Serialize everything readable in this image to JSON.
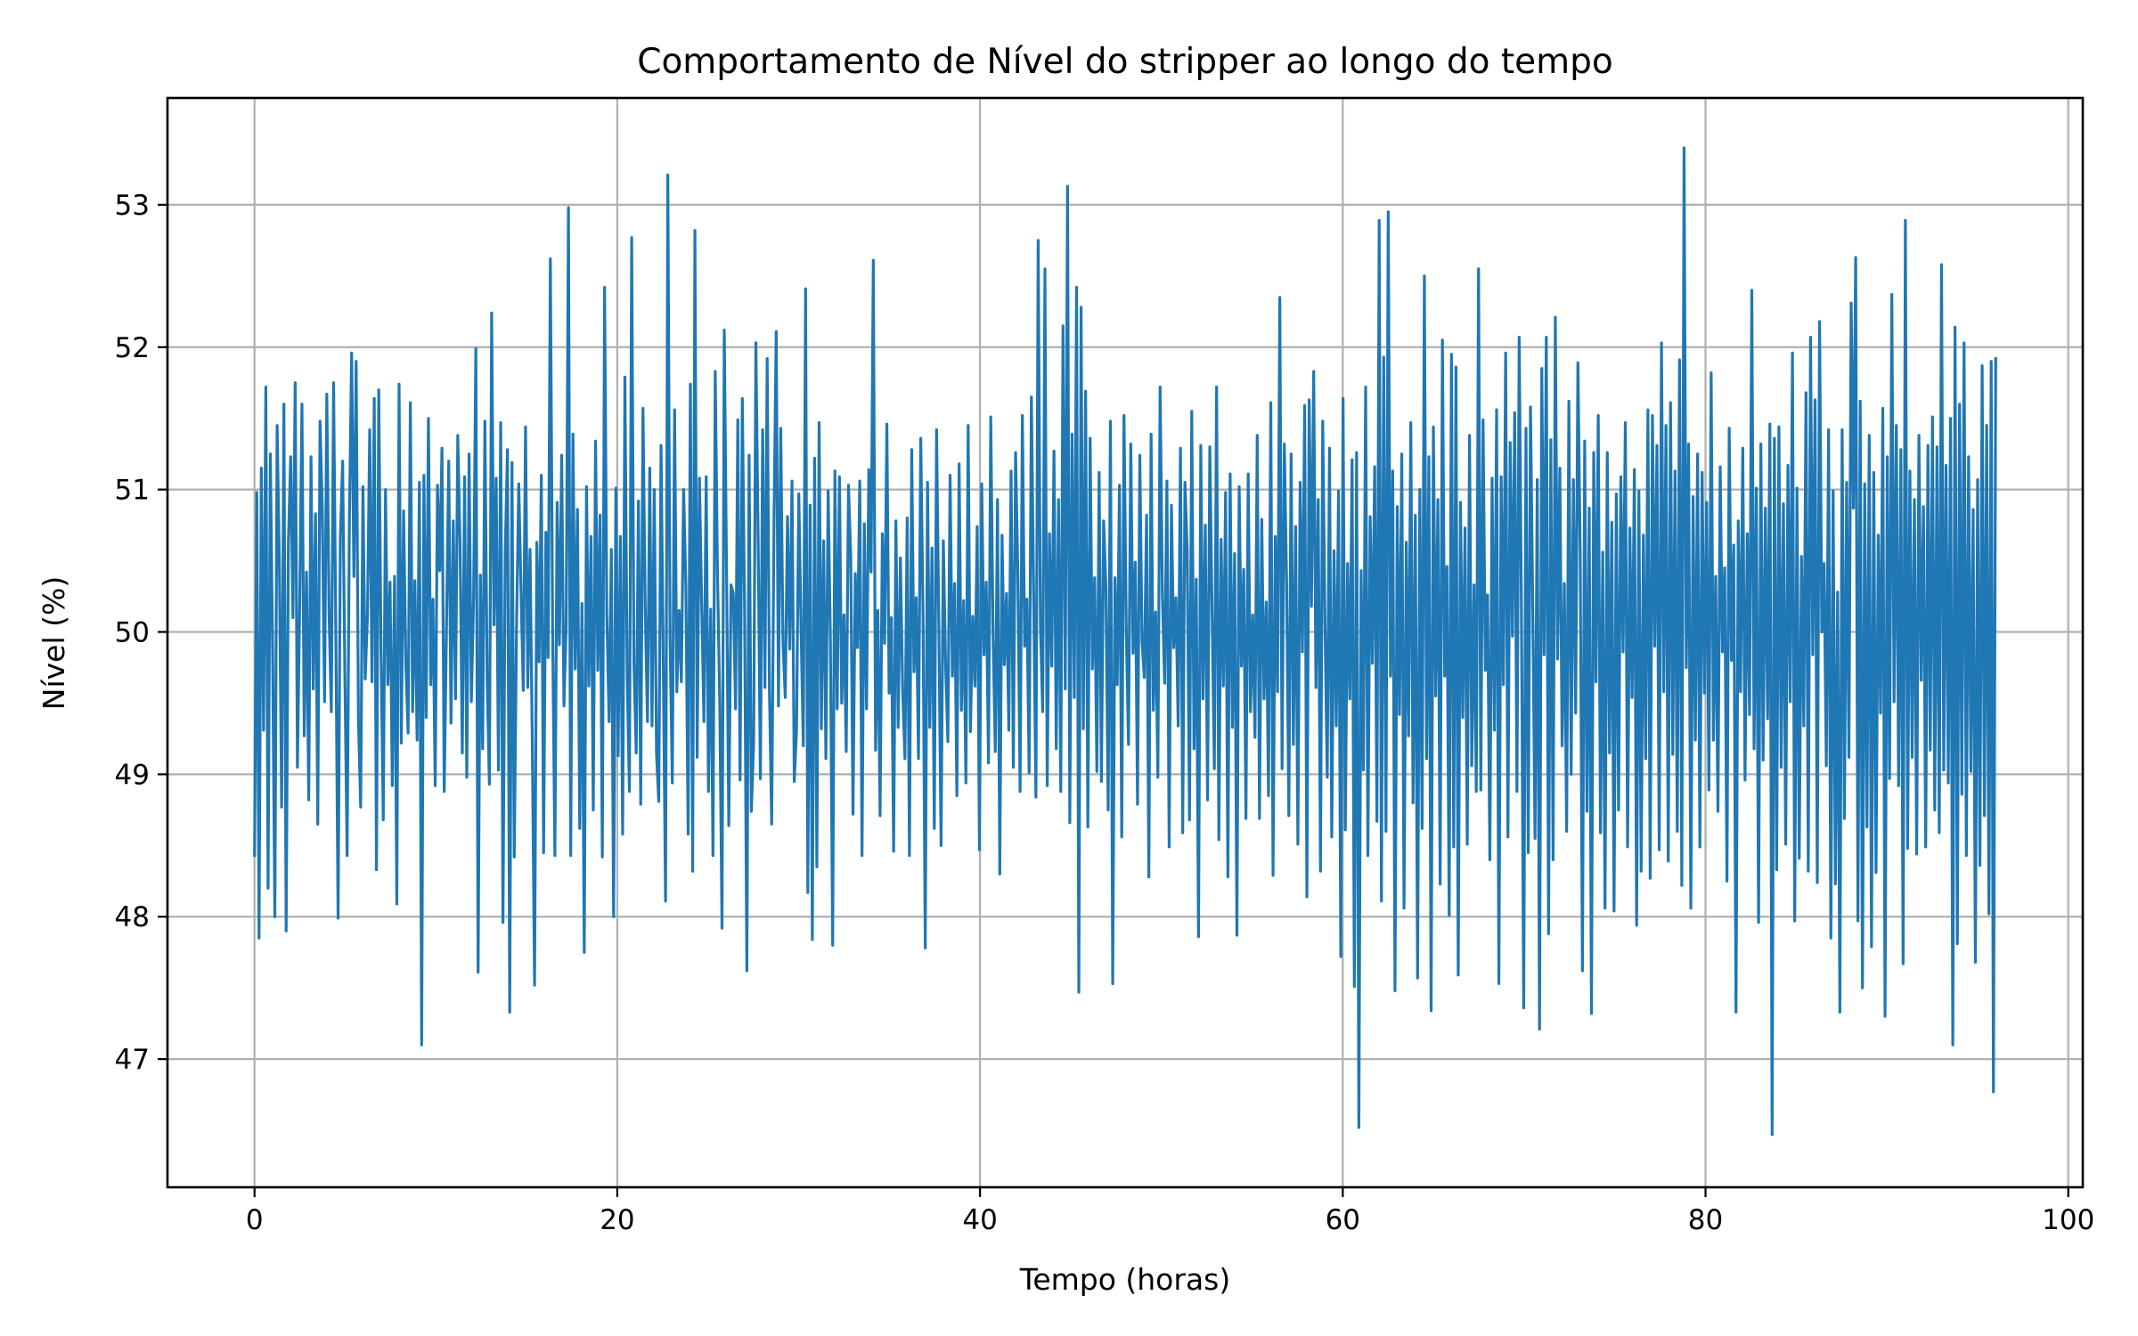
{
  "chart_data": {
    "type": "line",
    "title": "Comportamento de Nível do stripper ao longo do tempo",
    "xlabel": "Tempo (horas)",
    "ylabel": "Nível (%)",
    "xlim": [
      -4.8,
      100.8
    ],
    "ylim": [
      46.1,
      53.75
    ],
    "xticks": [
      0,
      20,
      40,
      60,
      80,
      100
    ],
    "yticks": [
      47,
      48,
      49,
      50,
      51,
      52,
      53
    ],
    "xtick_labels": [
      "0",
      "20",
      "40",
      "60",
      "80",
      "100"
    ],
    "ytick_labels": [
      "47",
      "48",
      "49",
      "50",
      "51",
      "52",
      "53"
    ],
    "grid": true,
    "series": [
      {
        "color": "#1f77b4",
        "x_start": 0,
        "x_step": 0.1,
        "values": [
          48.42,
          50.98,
          47.85,
          51.15,
          49.31,
          51.72,
          48.2,
          51.25,
          49.87,
          48.0,
          51.45,
          50.48,
          48.77,
          51.6,
          47.9,
          50.63,
          51.23,
          50.1,
          51.75,
          49.05,
          50.2,
          51.6,
          49.27,
          50.42,
          48.82,
          51.23,
          49.6,
          50.83,
          48.65,
          51.48,
          50.87,
          49.51,
          51.67,
          50.14,
          49.44,
          51.75,
          50.0,
          47.99,
          50.66,
          51.2,
          49.7,
          48.43,
          50.78,
          51.96,
          50.39,
          51.9,
          49.39,
          48.77,
          51.02,
          49.67,
          50.11,
          51.42,
          49.65,
          51.64,
          48.33,
          51.7,
          49.88,
          48.68,
          51.0,
          49.63,
          50.35,
          48.92,
          50.39,
          48.09,
          51.74,
          49.22,
          50.85,
          49.78,
          49.29,
          51.61,
          49.44,
          50.36,
          49.24,
          51.05,
          47.1,
          51.1,
          49.4,
          51.5,
          49.63,
          50.23,
          48.92,
          51.03,
          50.43,
          51.29,
          48.88,
          50.04,
          51.2,
          49.36,
          50.78,
          49.53,
          51.38,
          50.62,
          49.15,
          51.09,
          48.98,
          51.25,
          49.51,
          50.23,
          51.99,
          47.61,
          50.4,
          49.18,
          51.48,
          49.67,
          48.93,
          52.24,
          50.05,
          51.08,
          49.03,
          51.47,
          47.96,
          50.56,
          51.28,
          47.33,
          51.19,
          48.42,
          50.02,
          51.04,
          50.29,
          49.59,
          51.44,
          49.61,
          50.58,
          49.22,
          47.52,
          50.63,
          49.79,
          51.1,
          48.45,
          50.7,
          49.82,
          52.62,
          50.0,
          48.43,
          50.91,
          49.91,
          51.24,
          49.48,
          50.04,
          52.98,
          48.43,
          51.39,
          49.74,
          50.86,
          48.62,
          50.2,
          47.75,
          51.02,
          49.62,
          50.67,
          48.75,
          51.34,
          49.73,
          50.82,
          48.42,
          52.42,
          50.12,
          49.37,
          50.58,
          48.0,
          51.01,
          49.13,
          50.67,
          48.58,
          51.79,
          49.7,
          48.88,
          52.77,
          49.78,
          49.15,
          50.92,
          48.79,
          51.57,
          50.17,
          49.37,
          51.15,
          49.34,
          51.0,
          49.14,
          48.81,
          51.31,
          49.77,
          48.11,
          53.21,
          49.95,
          48.94,
          51.56,
          49.58,
          50.15,
          49.65,
          51.0,
          50.32,
          48.58,
          51.74,
          48.32,
          52.82,
          49.12,
          51.08,
          50.2,
          49.37,
          51.09,
          48.88,
          50.16,
          48.43,
          51.83,
          50.41,
          49.51,
          47.92,
          52.12,
          50.45,
          48.64,
          50.33,
          50.27,
          49.46,
          51.49,
          48.96,
          51.64,
          50.16,
          47.62,
          51.24,
          48.74,
          49.21,
          52.03,
          50.65,
          48.97,
          51.42,
          49.61,
          51.92,
          49.59,
          48.65,
          50.75,
          52.11,
          49.48,
          51.43,
          49.93,
          49.54,
          50.81,
          49.88,
          51.06,
          48.95,
          49.31,
          50.97,
          50.03,
          49.2,
          52.41,
          48.17,
          50.89,
          47.84,
          51.22,
          48.35,
          51.47,
          49.32,
          50.64,
          49.11,
          50.99,
          49.93,
          47.8,
          51.13,
          49.46,
          51.09,
          49.5,
          50.12,
          49.16,
          51.03,
          50.53,
          48.72,
          50.41,
          49.89,
          51.06,
          48.43,
          50.76,
          49.46,
          51.14,
          50.42,
          52.61,
          49.17,
          50.15,
          48.71,
          50.69,
          49.92,
          51.46,
          49.57,
          50.1,
          48.46,
          50.78,
          49.33,
          50.52,
          49.59,
          49.11,
          50.8,
          48.43,
          51.28,
          49.72,
          50.24,
          49.11,
          51.36,
          50.15,
          47.78,
          51.05,
          49.33,
          50.59,
          48.62,
          51.42,
          50.07,
          48.5,
          50.64,
          49.78,
          49.23,
          51.1,
          49.69,
          50.34,
          48.85,
          51.18,
          49.45,
          50.22,
          48.94,
          51.45,
          49.3,
          50.11,
          49.62,
          50.74,
          48.47,
          51.04,
          49.84,
          50.35,
          49.08,
          51.51,
          50.0,
          49.16,
          50.93,
          48.3,
          50.68,
          49.77,
          50.27,
          49.31,
          51.13,
          49.05,
          51.26,
          50.41,
          48.88,
          51.52,
          49.9,
          50.23,
          49.01,
          51.65,
          50.26,
          48.84,
          52.75,
          50.04,
          49.44,
          52.55,
          48.92,
          50.69,
          49.76,
          51.27,
          49.18,
          50.93,
          48.88,
          52.15,
          49.6,
          53.13,
          48.66,
          51.39,
          49.54,
          52.42,
          47.47,
          52.28,
          49.32,
          51.69,
          48.63,
          51.36,
          49.74,
          50.38,
          49.02,
          51.12,
          48.95,
          50.78,
          50.3,
          48.75,
          51.48,
          47.53,
          50.38,
          49.63,
          51.03,
          48.56,
          51.52,
          50.03,
          49.21,
          51.32,
          49.85,
          50.49,
          48.79,
          51.24,
          49.93,
          49.68,
          50.82,
          48.28,
          51.39,
          49.45,
          50.14,
          48.98,
          51.72,
          50.26,
          49.64,
          51.06,
          48.49,
          50.89,
          49.89,
          50.24,
          49.34,
          51.29,
          48.59,
          51.05,
          50.57,
          48.68,
          51.55,
          49.18,
          50.37,
          47.86,
          51.31,
          49.53,
          50.75,
          48.82,
          51.3,
          50.15,
          49.04,
          51.72,
          48.54,
          50.65,
          49.62,
          50.98,
          48.28,
          51.11,
          49.33,
          50.55,
          47.87,
          51.02,
          49.76,
          50.44,
          48.69,
          51.11,
          49.44,
          50.12,
          49.26,
          51.38,
          48.69,
          50.79,
          49.53,
          50.21,
          48.85,
          51.61,
          48.29,
          50.67,
          49.58,
          52.35,
          49.04,
          51.32,
          50.36,
          48.71,
          51.25,
          49.21,
          50.74,
          48.51,
          51.05,
          49.86,
          51.59,
          48.14,
          51.63,
          50.18,
          51.83,
          49.61,
          50.93,
          48.32,
          51.48,
          50.07,
          48.98,
          51.29,
          48.56,
          50.57,
          49.34,
          50.99,
          47.72,
          51.64,
          48.61,
          50.48,
          49.53,
          51.21,
          47.51,
          51.26,
          46.52,
          50.43,
          49.03,
          51.72,
          48.43,
          50.81,
          49.78,
          51.16,
          48.67,
          52.89,
          48.11,
          51.93,
          48.6,
          52.95,
          49.69,
          51.13,
          47.48,
          50.88,
          49.42,
          51.25,
          48.06,
          50.63,
          49.27,
          51.47,
          48.8,
          50.82,
          47.57,
          51.0,
          48.62,
          52.5,
          49.11,
          51.23,
          47.34,
          51.44,
          49.55,
          50.93,
          48.23,
          52.05,
          49.69,
          50.46,
          48.01,
          51.95,
          48.49,
          51.86,
          47.59,
          50.91,
          49.4,
          50.73,
          48.51,
          51.38,
          49.06,
          50.33,
          48.88,
          52.55,
          48.89,
          51.49,
          49.73,
          50.26,
          48.4,
          51.08,
          49.31,
          51.56,
          47.53,
          51.09,
          49.63,
          51.96,
          48.56,
          51.33,
          49.97,
          51.54,
          48.88,
          52.07,
          50.12,
          47.36,
          51.43,
          48.45,
          51.58,
          50.18,
          48.55,
          51.07,
          47.21,
          51.85,
          49.84,
          52.07,
          47.88,
          51.35,
          48.4,
          52.21,
          49.81,
          51.15,
          49.2,
          50.34,
          48.6,
          51.62,
          49.0,
          51.07,
          49.43,
          51.89,
          50.58,
          47.62,
          51.34,
          48.74,
          50.87,
          47.32,
          51.26,
          49.65,
          51.52,
          48.59,
          50.56,
          48.06,
          51.26,
          49.15,
          50.77,
          48.04,
          50.97,
          48.75,
          51.09,
          49.86,
          51.47,
          48.49,
          50.73,
          49.54,
          51.14,
          47.94,
          50.99,
          48.32,
          50.68,
          49.11,
          51.56,
          48.27,
          51.52,
          49.9,
          51.31,
          48.47,
          52.03,
          49.58,
          51.45,
          48.39,
          51.61,
          49.14,
          51.13,
          48.6,
          51.91,
          48.22,
          53.4,
          49.75,
          51.32,
          48.06,
          50.95,
          49.24,
          51.25,
          48.49,
          51.12,
          49.57,
          50.91,
          48.89,
          51.82,
          49.24,
          50.39,
          48.74,
          51.16,
          49.86,
          50.45,
          48.25,
          51.43,
          49.8,
          50.61,
          47.33,
          50.78,
          49.58,
          51.29,
          48.96,
          50.69,
          49.42,
          52.4,
          49.18,
          51.01,
          47.96,
          51.32,
          49.1,
          50.87,
          49.39,
          51.46,
          46.47,
          51.36,
          48.33,
          51.44,
          49.05,
          50.9,
          48.51,
          51.17,
          49.51,
          51.96,
          47.97,
          51.01,
          48.41,
          50.53,
          49.34,
          51.68,
          48.32,
          52.07,
          49.84,
          51.63,
          48.24,
          52.18,
          50.0,
          50.48,
          49.06,
          51.42,
          47.85,
          50.99,
          48.23,
          50.28,
          47.33,
          51.42,
          48.69,
          51.05,
          49.12,
          52.31,
          50.87,
          52.63,
          47.97,
          51.62,
          47.5,
          51.04,
          48.63,
          51.38,
          47.79,
          51.12,
          48.31,
          50.68,
          49.43,
          51.57,
          47.3,
          51.23,
          48.97,
          52.37,
          49.51,
          51.45,
          48.92,
          51.28,
          47.67,
          52.89,
          48.48,
          51.13,
          49.12,
          50.93,
          48.44,
          51.38,
          49.66,
          50.88,
          48.49,
          51.31,
          49.17,
          51.51,
          48.75,
          51.3,
          48.59,
          52.58,
          49.03,
          51.17,
          48.94,
          51.5,
          47.1,
          52.14,
          47.81,
          51.6,
          48.86,
          52.03,
          48.43,
          51.23,
          49.02,
          50.86,
          47.68,
          51.07,
          48.36,
          51.87,
          48.71,
          51.45,
          48.02,
          51.9,
          46.77,
          51.93
        ]
      }
    ]
  }
}
